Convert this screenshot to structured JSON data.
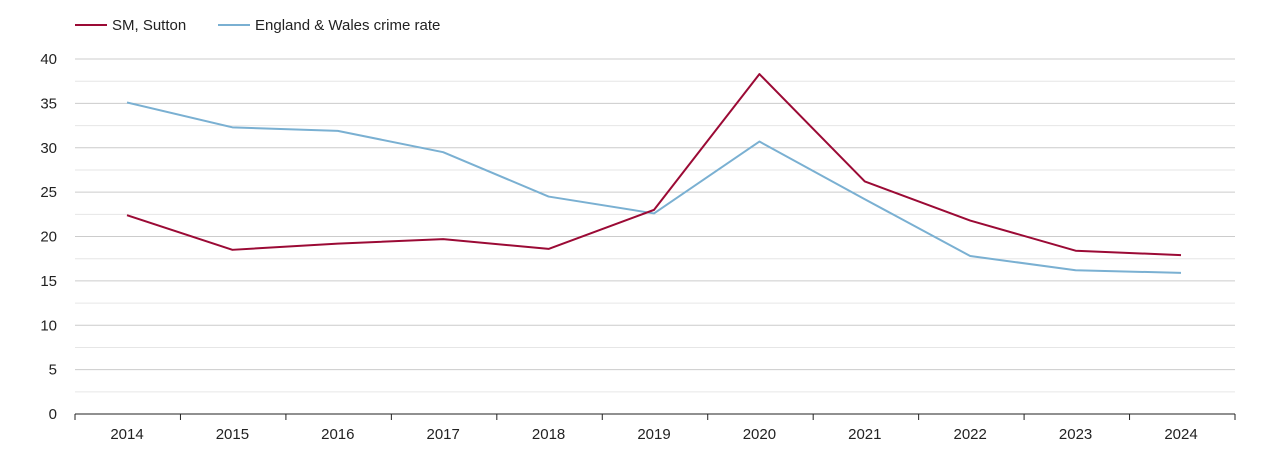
{
  "chart_data": {
    "type": "line",
    "title": "",
    "xlabel": "",
    "ylabel": "",
    "categories": [
      "2014",
      "2015",
      "2016",
      "2017",
      "2018",
      "2019",
      "2020",
      "2021",
      "2022",
      "2023",
      "2024"
    ],
    "ylim": [
      0,
      40
    ],
    "yticks": [
      "0",
      "5",
      "10",
      "15",
      "20",
      "25",
      "30",
      "35",
      "40"
    ],
    "grid": true,
    "legend_position": "top-left",
    "series": [
      {
        "name": "SM, Sutton",
        "color": "#9b0a35",
        "values": [
          22.4,
          18.5,
          19.2,
          19.7,
          18.6,
          23.0,
          38.3,
          26.2,
          21.8,
          18.4,
          17.9
        ]
      },
      {
        "name": "England & Wales crime rate",
        "color": "#7ab0d2",
        "values": [
          35.1,
          32.3,
          31.9,
          29.5,
          24.5,
          22.6,
          30.7,
          24.2,
          17.8,
          16.2,
          15.9
        ]
      }
    ]
  }
}
